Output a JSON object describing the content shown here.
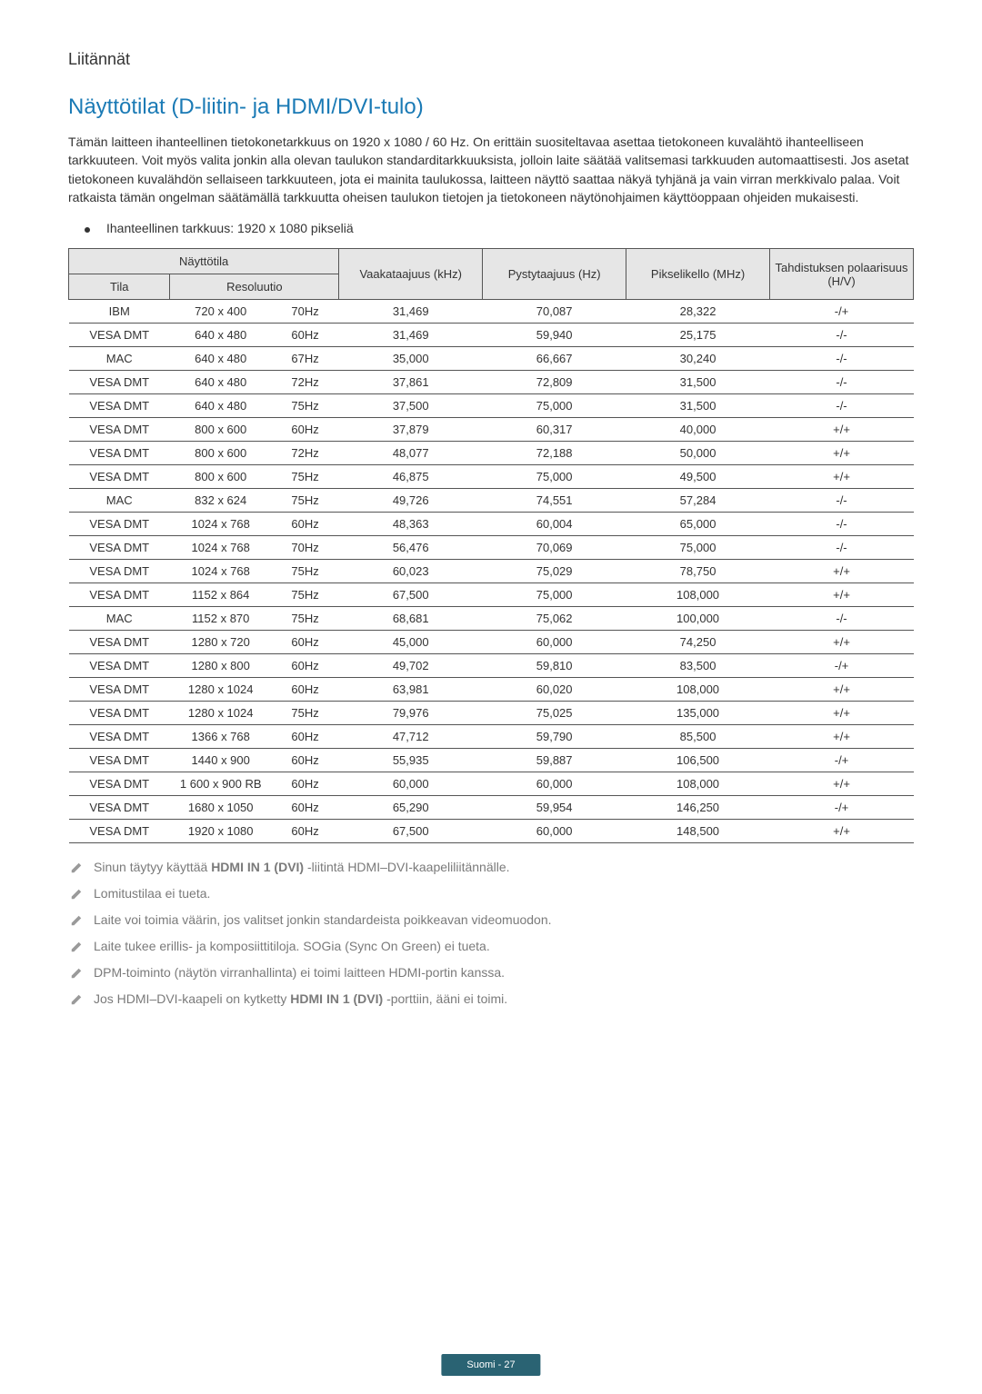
{
  "section_label": "Liitännät",
  "heading": "Näyttötilat (D-liitin- ja HDMI/DVI-tulo)",
  "intro": "Tämän laitteen ihanteellinen tietokonetarkkuus on 1920 x 1080 / 60 Hz. On erittäin suositeltavaa asettaa tietokoneen kuvalähtö ihanteelliseen tarkkuuteen. Voit myös valita jonkin alla olevan taulukon standarditarkkuuksista, jolloin laite säätää valitsemasi tarkkuuden automaattisesti. Jos asetat tietokoneen kuvalähdön sellaiseen tarkkuuteen, jota ei mainita taulukossa, laitteen näyttö saattaa näkyä tyhjänä ja vain virran merkkivalo palaa. Voit ratkaista tämän ongelman säätämällä tarkkuutta oheisen taulukon tietojen ja tietokoneen näytönohjaimen käyttöoppaan ohjeiden mukaisesti.",
  "bullet": "Ihanteellinen tarkkuus: 1920 x 1080 pikseliä",
  "table": {
    "header_group_mode": "Näyttötila",
    "header_tila": "Tila",
    "header_resoluutio": "Resoluutio",
    "header_h": "Vaakataajuus (kHz)",
    "header_v": "Pystytaajuus (Hz)",
    "header_clock": "Pikselikello (MHz)",
    "header_pol": "Tahdistuksen polaarisuus (H/V)",
    "rows": [
      {
        "tila": "IBM",
        "res": "720 x 400",
        "hz": "70Hz",
        "h": "31,469",
        "v": "70,087",
        "c": "28,322",
        "p": "-/+"
      },
      {
        "tila": "VESA DMT",
        "res": "640 x 480",
        "hz": "60Hz",
        "h": "31,469",
        "v": "59,940",
        "c": "25,175",
        "p": "-/-"
      },
      {
        "tila": "MAC",
        "res": "640 x 480",
        "hz": "67Hz",
        "h": "35,000",
        "v": "66,667",
        "c": "30,240",
        "p": "-/-"
      },
      {
        "tila": "VESA DMT",
        "res": "640 x 480",
        "hz": "72Hz",
        "h": "37,861",
        "v": "72,809",
        "c": "31,500",
        "p": "-/-"
      },
      {
        "tila": "VESA DMT",
        "res": "640 x 480",
        "hz": "75Hz",
        "h": "37,500",
        "v": "75,000",
        "c": "31,500",
        "p": "-/-"
      },
      {
        "tila": "VESA DMT",
        "res": "800 x 600",
        "hz": "60Hz",
        "h": "37,879",
        "v": "60,317",
        "c": "40,000",
        "p": "+/+"
      },
      {
        "tila": "VESA DMT",
        "res": "800 x 600",
        "hz": "72Hz",
        "h": "48,077",
        "v": "72,188",
        "c": "50,000",
        "p": "+/+"
      },
      {
        "tila": "VESA DMT",
        "res": "800 x 600",
        "hz": "75Hz",
        "h": "46,875",
        "v": "75,000",
        "c": "49,500",
        "p": "+/+"
      },
      {
        "tila": "MAC",
        "res": "832 x 624",
        "hz": "75Hz",
        "h": "49,726",
        "v": "74,551",
        "c": "57,284",
        "p": "-/-"
      },
      {
        "tila": "VESA DMT",
        "res": "1024 x 768",
        "hz": "60Hz",
        "h": "48,363",
        "v": "60,004",
        "c": "65,000",
        "p": "-/-"
      },
      {
        "tila": "VESA DMT",
        "res": "1024 x 768",
        "hz": "70Hz",
        "h": "56,476",
        "v": "70,069",
        "c": "75,000",
        "p": "-/-"
      },
      {
        "tila": "VESA DMT",
        "res": "1024 x 768",
        "hz": "75Hz",
        "h": "60,023",
        "v": "75,029",
        "c": "78,750",
        "p": "+/+"
      },
      {
        "tila": "VESA DMT",
        "res": "1152 x 864",
        "hz": "75Hz",
        "h": "67,500",
        "v": "75,000",
        "c": "108,000",
        "p": "+/+"
      },
      {
        "tila": "MAC",
        "res": "1152 x 870",
        "hz": "75Hz",
        "h": "68,681",
        "v": "75,062",
        "c": "100,000",
        "p": "-/-"
      },
      {
        "tila": "VESA DMT",
        "res": "1280 x 720",
        "hz": "60Hz",
        "h": "45,000",
        "v": "60,000",
        "c": "74,250",
        "p": "+/+"
      },
      {
        "tila": "VESA DMT",
        "res": "1280 x 800",
        "hz": "60Hz",
        "h": "49,702",
        "v": "59,810",
        "c": "83,500",
        "p": "-/+"
      },
      {
        "tila": "VESA DMT",
        "res": "1280 x 1024",
        "hz": "60Hz",
        "h": "63,981",
        "v": "60,020",
        "c": "108,000",
        "p": "+/+"
      },
      {
        "tila": "VESA DMT",
        "res": "1280 x 1024",
        "hz": "75Hz",
        "h": "79,976",
        "v": "75,025",
        "c": "135,000",
        "p": "+/+"
      },
      {
        "tila": "VESA DMT",
        "res": "1366 x 768",
        "hz": "60Hz",
        "h": "47,712",
        "v": "59,790",
        "c": "85,500",
        "p": "+/+"
      },
      {
        "tila": "VESA DMT",
        "res": "1440 x 900",
        "hz": "60Hz",
        "h": "55,935",
        "v": "59,887",
        "c": "106,500",
        "p": "-/+"
      },
      {
        "tila": "VESA DMT",
        "res": "1 600 x 900 RB",
        "hz": "60Hz",
        "h": "60,000",
        "v": "60,000",
        "c": "108,000",
        "p": "+/+"
      },
      {
        "tila": "VESA DMT",
        "res": "1680 x 1050",
        "hz": "60Hz",
        "h": "65,290",
        "v": "59,954",
        "c": "146,250",
        "p": "-/+"
      },
      {
        "tila": "VESA DMT",
        "res": "1920 x 1080",
        "hz": "60Hz",
        "h": "67,500",
        "v": "60,000",
        "c": "148,500",
        "p": "+/+"
      }
    ]
  },
  "notes": [
    {
      "pre": "Sinun täytyy käyttää ",
      "bold": "HDMI IN 1 (DVI)",
      "post": " -liitintä HDMI–DVI-kaapeliliitännälle."
    },
    {
      "pre": "Lomitustilaa ei tueta.",
      "bold": "",
      "post": ""
    },
    {
      "pre": "Laite voi toimia väärin, jos valitset jonkin standardeista poikkeavan videomuodon.",
      "bold": "",
      "post": ""
    },
    {
      "pre": "Laite tukee erillis- ja komposiittitiloja. SOGia (Sync On Green) ei tueta.",
      "bold": "",
      "post": ""
    },
    {
      "pre": "DPM-toiminto (näytön virranhallinta) ei toimi laitteen HDMI-portin kanssa.",
      "bold": "",
      "post": ""
    },
    {
      "pre": "Jos HDMI–DVI-kaapeli on kytketty ",
      "bold": "HDMI IN 1 (DVI)",
      "post": " -porttiin, ääni ei toimi."
    }
  ],
  "footer": "Suomi - 27"
}
